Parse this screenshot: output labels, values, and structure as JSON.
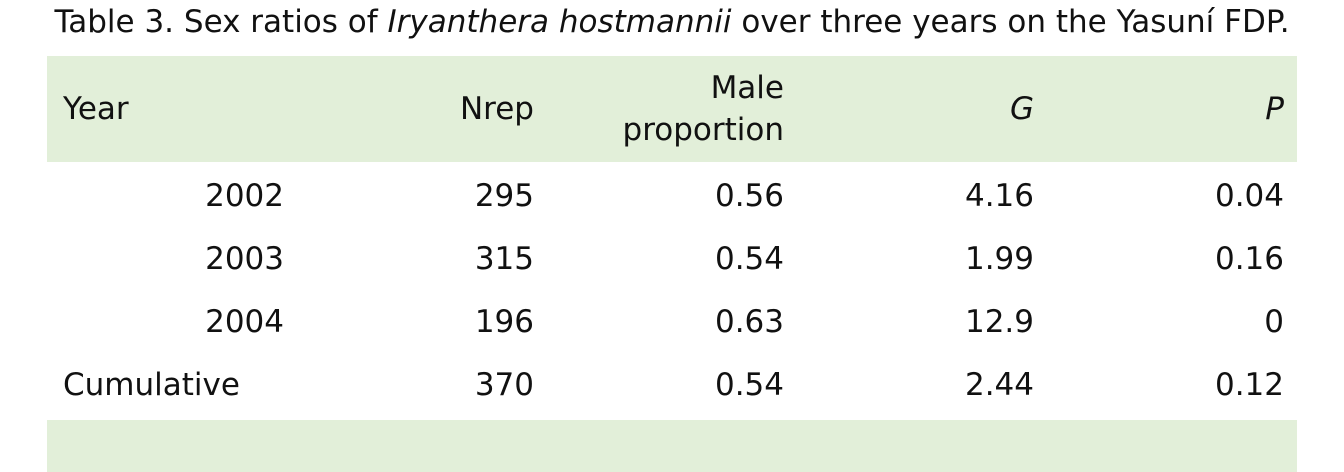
{
  "caption": {
    "prefix": "Table 3. Sex ratios of ",
    "species": "Iryanthera hostmannii",
    "suffix": " over three years on the Yasuní FDP."
  },
  "table": {
    "headers": [
      "Year",
      "Nrep",
      "Male proportion",
      "G",
      "P"
    ],
    "rows": [
      [
        "2002",
        "295",
        "0.56",
        "4.16",
        "0.04"
      ],
      [
        "2003",
        "315",
        "0.54",
        "1.99",
        "0.16"
      ],
      [
        "2004",
        "196",
        "0.63",
        "12.9",
        "0"
      ],
      [
        "Cumulative",
        "370",
        "0.54",
        "2.44",
        "0.12"
      ]
    ]
  },
  "colors": {
    "header_background": "#e2efd9",
    "text": "#111111"
  }
}
